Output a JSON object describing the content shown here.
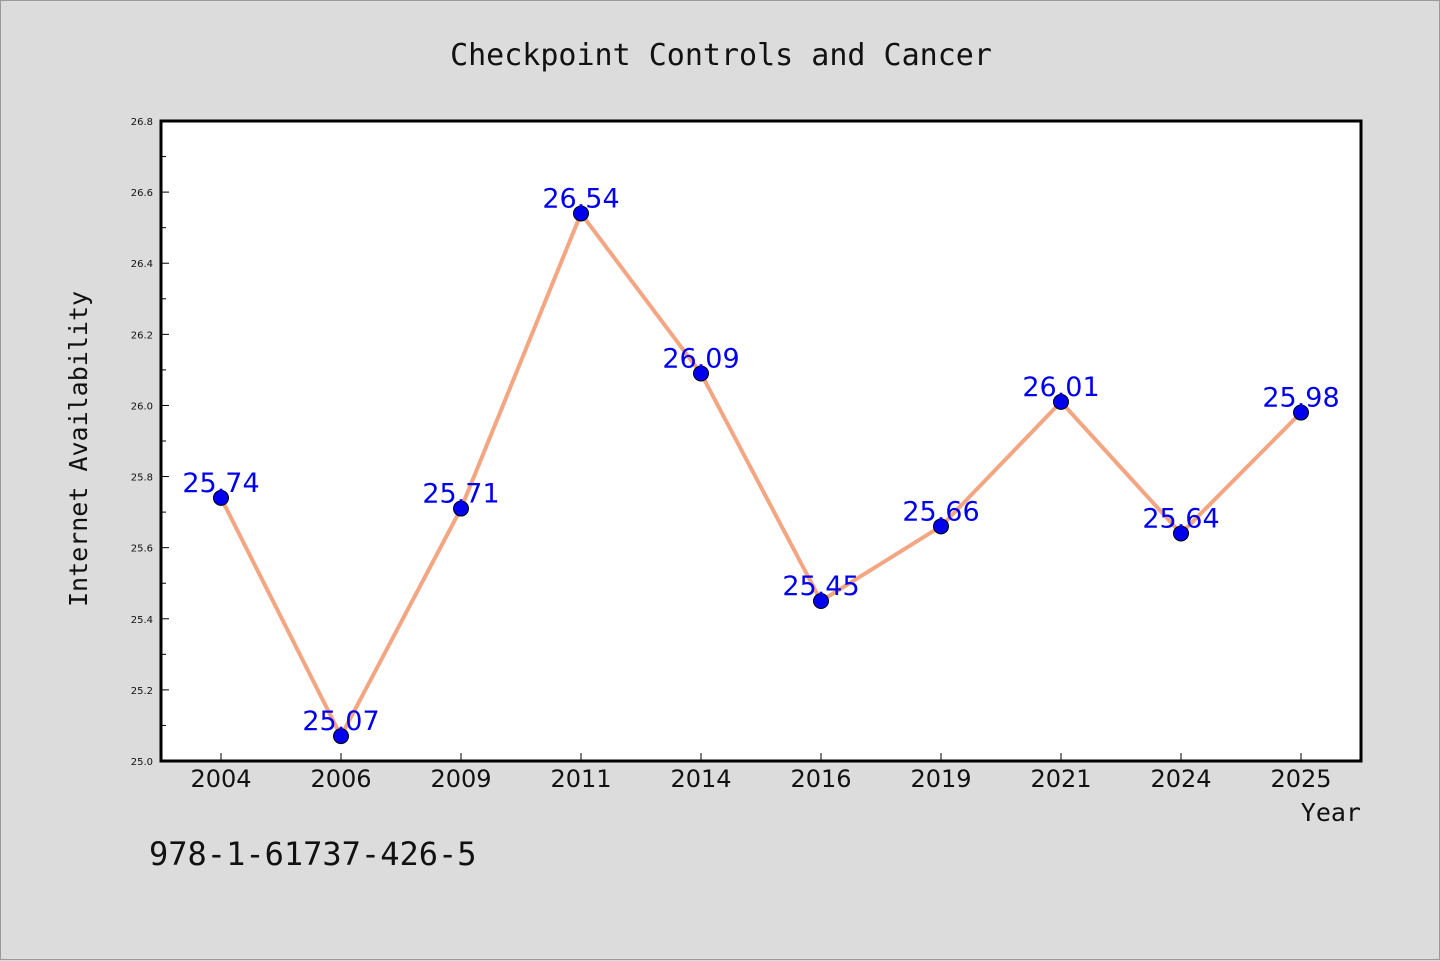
{
  "chart_data": {
    "type": "line",
    "title": "Checkpoint Controls and Cancer",
    "xlabel": "Year",
    "ylabel": "Internet Availability",
    "categories": [
      "2004",
      "2006",
      "2009",
      "2011",
      "2014",
      "2016",
      "2019",
      "2021",
      "2024",
      "2025"
    ],
    "series": [
      {
        "values": [
          25.74,
          25.07,
          25.71,
          26.54,
          26.09,
          25.45,
          25.66,
          26.01,
          25.64,
          25.98
        ]
      }
    ],
    "data_labels": [
      "25.74",
      "25.07",
      "25.71",
      "26.54",
      "26.09",
      "25.45",
      "25.66",
      "26.01",
      "25.64",
      "25.98"
    ],
    "ylim": [
      25.0,
      26.8
    ],
    "yticks": [
      "25.0",
      "25.2",
      "25.4",
      "25.6",
      "25.8",
      "26.0",
      "26.2",
      "26.4",
      "26.6",
      "26.8"
    ],
    "grid": false,
    "line_color": "#f4a582",
    "marker_color": "#0000ee",
    "label_color": "#0000ee"
  },
  "annotation": "978-1-61737-426-5"
}
